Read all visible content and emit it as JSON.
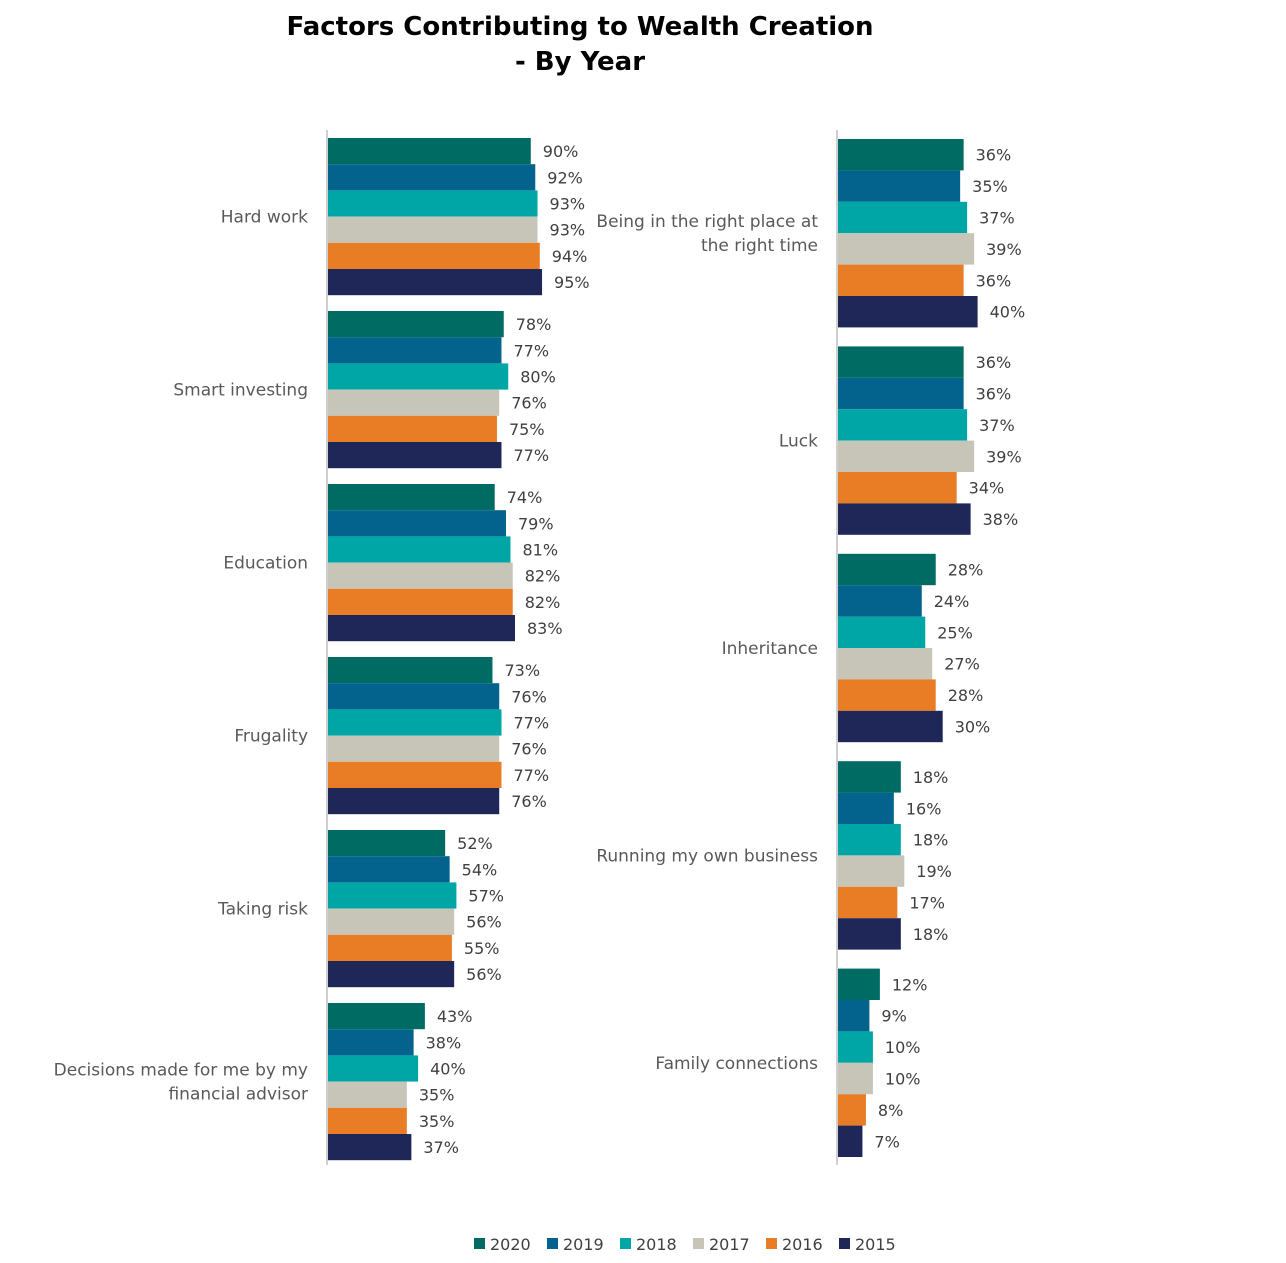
{
  "title": "Factors Contributing to Wealth Creation",
  "subtitle": "- By Year",
  "legend_position": "bottom",
  "series_colors": {
    "2020": "#006B62",
    "2019": "#03638C",
    "2018": "#00A6A6",
    "2017": "#C7C5B8",
    "2016": "#E87D26",
    "2015": "#1F2658"
  },
  "chart_data": [
    {
      "type": "bar",
      "orientation": "horizontal",
      "xlim": [
        0,
        100
      ],
      "grid": false,
      "series_names": [
        "2020",
        "2019",
        "2018",
        "2017",
        "2016",
        "2015"
      ],
      "categories": [
        {
          "label": [
            "Hard work"
          ],
          "values": [
            90,
            92,
            93,
            93,
            94,
            95
          ]
        },
        {
          "label": [
            "Smart investing"
          ],
          "values": [
            78,
            77,
            80,
            76,
            75,
            77
          ]
        },
        {
          "label": [
            "Education"
          ],
          "values": [
            74,
            79,
            81,
            82,
            82,
            83
          ]
        },
        {
          "label": [
            "Frugality"
          ],
          "values": [
            73,
            76,
            77,
            76,
            77,
            76
          ]
        },
        {
          "label": [
            "Taking risk"
          ],
          "values": [
            52,
            54,
            57,
            56,
            55,
            56
          ]
        },
        {
          "label": [
            "Decisions made for me by my",
            "financial advisor"
          ],
          "values": [
            43,
            38,
            40,
            35,
            35,
            37
          ]
        }
      ]
    },
    {
      "type": "bar",
      "orientation": "horizontal",
      "xlim": [
        0,
        100
      ],
      "grid": false,
      "series_names": [
        "2020",
        "2019",
        "2018",
        "2017",
        "2016",
        "2015"
      ],
      "categories": [
        {
          "label": [
            "Being in the right place at",
            "the right time"
          ],
          "values": [
            36,
            35,
            37,
            39,
            36,
            40
          ]
        },
        {
          "label": [
            "Luck"
          ],
          "values": [
            36,
            36,
            37,
            39,
            34,
            38
          ]
        },
        {
          "label": [
            "Inheritance"
          ],
          "values": [
            28,
            24,
            25,
            27,
            28,
            30
          ]
        },
        {
          "label": [
            "Running my own business"
          ],
          "values": [
            18,
            16,
            18,
            19,
            17,
            18
          ]
        },
        {
          "label": [
            "Family connections"
          ],
          "values": [
            12,
            9,
            10,
            10,
            8,
            7
          ]
        }
      ]
    }
  ],
  "legend": [
    "2020",
    "2019",
    "2018",
    "2017",
    "2016",
    "2015"
  ]
}
